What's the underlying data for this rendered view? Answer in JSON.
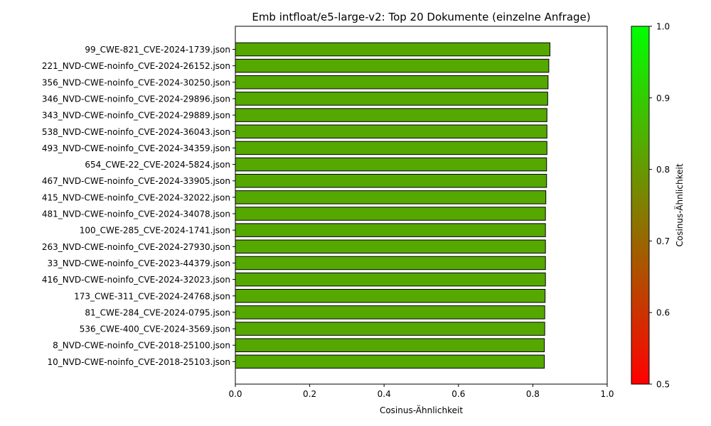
{
  "chart_data": {
    "type": "bar",
    "orientation": "horizontal",
    "title": "Emb intfloat/e5-large-v2: Top 20 Dokumente (einzelne Anfrage)",
    "xlabel": "Cosinus-Ähnlichkeit",
    "ylabel": "",
    "xlim": [
      0,
      1.0
    ],
    "xticks": [
      "0.0",
      "0.2",
      "0.4",
      "0.6",
      "0.8",
      "1.0"
    ],
    "grid": false,
    "categories": [
      "99_CWE-821_CVE-2024-1739.json",
      "221_NVD-CWE-noinfo_CVE-2024-26152.json",
      "356_NVD-CWE-noinfo_CVE-2024-30250.json",
      "346_NVD-CWE-noinfo_CVE-2024-29896.json",
      "343_NVD-CWE-noinfo_CVE-2024-29889.json",
      "538_NVD-CWE-noinfo_CVE-2024-36043.json",
      "493_NVD-CWE-noinfo_CVE-2024-34359.json",
      "654_CWE-22_CVE-2024-5824.json",
      "467_NVD-CWE-noinfo_CVE-2024-33905.json",
      "415_NVD-CWE-noinfo_CVE-2024-32022.json",
      "481_NVD-CWE-noinfo_CVE-2024-34078.json",
      "100_CWE-285_CVE-2024-1741.json",
      "263_NVD-CWE-noinfo_CVE-2024-27930.json",
      "33_NVD-CWE-noinfo_CVE-2023-44379.json",
      "416_NVD-CWE-noinfo_CVE-2024-32023.json",
      "173_CWE-311_CVE-2024-24768.json",
      "81_CWE-284_CVE-2024-0795.json",
      "536_CWE-400_CVE-2024-3569.json",
      "8_NVD-CWE-noinfo_CVE-2018-25100.json",
      "10_NVD-CWE-noinfo_CVE-2018-25103.json"
    ],
    "values": [
      0.846,
      0.843,
      0.841,
      0.84,
      0.838,
      0.838,
      0.838,
      0.837,
      0.837,
      0.835,
      0.834,
      0.834,
      0.834,
      0.834,
      0.834,
      0.833,
      0.832,
      0.832,
      0.831,
      0.831
    ],
    "bar_color": "#54a800",
    "bar_edge_color": "#000000",
    "colorbar": {
      "label": "Cosinus-Ähnlichkeit",
      "range": [
        0.5,
        1.0
      ],
      "ticks": [
        "0.5",
        "0.6",
        "0.7",
        "0.8",
        "0.9",
        "1.0"
      ],
      "color_low": "#ff0000",
      "color_high": "#00ff00"
    }
  }
}
